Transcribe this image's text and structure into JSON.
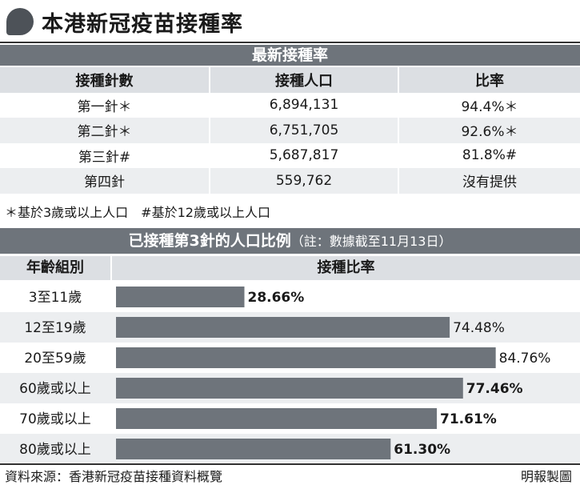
{
  "title": "本港新冠疫苗接種率",
  "table1": {
    "title": "最新接種率",
    "headers": [
      "接種針數",
      "接種人口",
      "比率"
    ],
    "rows": [
      [
        "第一針＊",
        "6,894,131",
        "94.4%＊"
      ],
      [
        "第二針＊",
        "6,751,705",
        "92.6%＊"
      ],
      [
        "第三針#",
        "5,687,817",
        "81.8%#"
      ],
      [
        "第四針",
        "559,762",
        "沒有提供"
      ]
    ],
    "footnote": "＊基於3歲或以上人口　#基於12歲或以上人口"
  },
  "chart_data": {
    "type": "bar",
    "orientation": "horizontal",
    "title": "已接種第3針的人口比例",
    "title_note": "（註：數據截至11月13日）",
    "category_header": "年齡組別",
    "value_header": "接種比率",
    "categories": [
      "3至11歲",
      "12至19歲",
      "20至59歲",
      "60歲或以上",
      "70歲或以上",
      "80歲或以上"
    ],
    "values": [
      28.66,
      74.48,
      84.76,
      77.46,
      71.61,
      61.3
    ],
    "labels": [
      "28.66%",
      "74.48%",
      "84.76%",
      "77.46%",
      "71.61%",
      "61.30%"
    ],
    "bold_labels": [
      true,
      false,
      false,
      true,
      true,
      true
    ],
    "xlim": [
      0,
      100
    ],
    "bar_color": "#6e747b",
    "alt_row_color": "#eceef0"
  },
  "source": "資料來源：香港新冠疫苗接種資料概覽",
  "credit": "明報製圖"
}
